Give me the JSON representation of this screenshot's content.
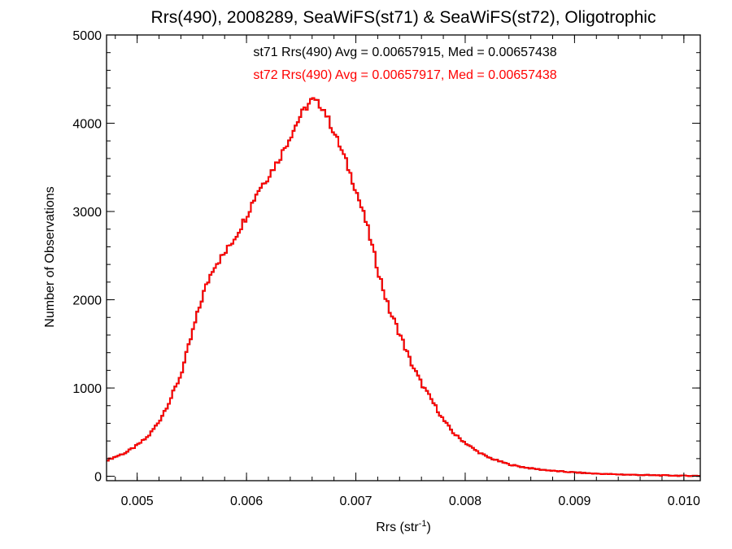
{
  "chart_data": {
    "type": "line",
    "step": true,
    "title": "Rrs(490), 2008289, SeaWiFS(st71) & SeaWiFS(st72), Oligotrophic",
    "xlabel": "Rrs (str",
    "xlabel_sup": "-1",
    "xlabel_suffix": ")",
    "ylabel": "Number of Observations",
    "xlim": [
      0.00472,
      0.01015
    ],
    "ylim": [
      -50,
      5000
    ],
    "xticks": [
      0.005,
      0.006,
      0.007,
      0.008,
      0.009,
      0.01
    ],
    "xtick_labels": [
      "0.005",
      "0.006",
      "0.007",
      "0.008",
      "0.009",
      "0.010"
    ],
    "yticks": [
      0,
      1000,
      2000,
      3000,
      4000,
      5000
    ],
    "ytick_labels": [
      "0",
      "1000",
      "2000",
      "3000",
      "4000",
      "5000"
    ],
    "annotations": [
      {
        "text": "st71 Rrs(490) Avg = 0.00657915, Med = 0.00657438",
        "color": "#000000"
      },
      {
        "text": "st72 Rrs(490) Avg = 0.00657917, Med = 0.00657438",
        "color": "#ff0000"
      }
    ],
    "series": [
      {
        "color": "#000000",
        "profile": [
          [
            0.00472,
            180
          ],
          [
            0.0048,
            220
          ],
          [
            0.0049,
            270
          ],
          [
            0.005,
            350
          ],
          [
            0.0051,
            450
          ],
          [
            0.0052,
            620
          ],
          [
            0.0053,
            860
          ],
          [
            0.0054,
            1150
          ],
          [
            0.0055,
            1600
          ],
          [
            0.0056,
            2050
          ],
          [
            0.0057,
            2380
          ],
          [
            0.0058,
            2520
          ],
          [
            0.0059,
            2720
          ],
          [
            0.006,
            2950
          ],
          [
            0.0061,
            3230
          ],
          [
            0.0062,
            3400
          ],
          [
            0.0063,
            3600
          ],
          [
            0.0064,
            3850
          ],
          [
            0.0065,
            4100
          ],
          [
            0.0066,
            4270
          ],
          [
            0.0067,
            4180
          ],
          [
            0.0068,
            3900
          ],
          [
            0.0069,
            3600
          ],
          [
            0.007,
            3250
          ],
          [
            0.0071,
            2850
          ],
          [
            0.0072,
            2350
          ],
          [
            0.0073,
            1900
          ],
          [
            0.0074,
            1620
          ],
          [
            0.0075,
            1300
          ],
          [
            0.0076,
            1050
          ],
          [
            0.0077,
            850
          ],
          [
            0.0078,
            640
          ],
          [
            0.0079,
            480
          ],
          [
            0.008,
            380
          ],
          [
            0.0081,
            290
          ],
          [
            0.0082,
            220
          ],
          [
            0.0083,
            175
          ],
          [
            0.0084,
            135
          ],
          [
            0.0085,
            110
          ],
          [
            0.0086,
            90
          ],
          [
            0.0087,
            75
          ],
          [
            0.0088,
            62
          ],
          [
            0.0089,
            52
          ],
          [
            0.009,
            44
          ],
          [
            0.0091,
            36
          ],
          [
            0.0092,
            30
          ],
          [
            0.0093,
            25
          ],
          [
            0.0094,
            21
          ],
          [
            0.0095,
            18
          ],
          [
            0.0096,
            15
          ],
          [
            0.0097,
            12
          ],
          [
            0.0098,
            10
          ],
          [
            0.0099,
            8
          ],
          [
            0.01,
            6
          ],
          [
            0.01015,
            5
          ]
        ]
      },
      {
        "color": "#ff0000",
        "profile": [
          [
            0.00472,
            180
          ],
          [
            0.0048,
            220
          ],
          [
            0.0049,
            270
          ],
          [
            0.005,
            350
          ],
          [
            0.0051,
            450
          ],
          [
            0.0052,
            620
          ],
          [
            0.0053,
            860
          ],
          [
            0.0054,
            1150
          ],
          [
            0.0055,
            1600
          ],
          [
            0.0056,
            2050
          ],
          [
            0.0057,
            2380
          ],
          [
            0.0058,
            2520
          ],
          [
            0.0059,
            2720
          ],
          [
            0.006,
            2950
          ],
          [
            0.0061,
            3230
          ],
          [
            0.0062,
            3400
          ],
          [
            0.0063,
            3600
          ],
          [
            0.0064,
            3850
          ],
          [
            0.0065,
            4100
          ],
          [
            0.0066,
            4270
          ],
          [
            0.0067,
            4180
          ],
          [
            0.0068,
            3900
          ],
          [
            0.0069,
            3600
          ],
          [
            0.007,
            3250
          ],
          [
            0.0071,
            2850
          ],
          [
            0.0072,
            2350
          ],
          [
            0.0073,
            1900
          ],
          [
            0.0074,
            1620
          ],
          [
            0.0075,
            1300
          ],
          [
            0.0076,
            1050
          ],
          [
            0.0077,
            850
          ],
          [
            0.0078,
            640
          ],
          [
            0.0079,
            480
          ],
          [
            0.008,
            380
          ],
          [
            0.0081,
            290
          ],
          [
            0.0082,
            220
          ],
          [
            0.0083,
            175
          ],
          [
            0.0084,
            135
          ],
          [
            0.0085,
            110
          ],
          [
            0.0086,
            90
          ],
          [
            0.0087,
            75
          ],
          [
            0.0088,
            62
          ],
          [
            0.0089,
            52
          ],
          [
            0.009,
            44
          ],
          [
            0.0091,
            36
          ],
          [
            0.0092,
            30
          ],
          [
            0.0093,
            25
          ],
          [
            0.0094,
            21
          ],
          [
            0.0095,
            18
          ],
          [
            0.0096,
            15
          ],
          [
            0.0097,
            12
          ],
          [
            0.0098,
            10
          ],
          [
            0.0099,
            8
          ],
          [
            0.01,
            6
          ],
          [
            0.01015,
            5
          ]
        ]
      }
    ]
  }
}
